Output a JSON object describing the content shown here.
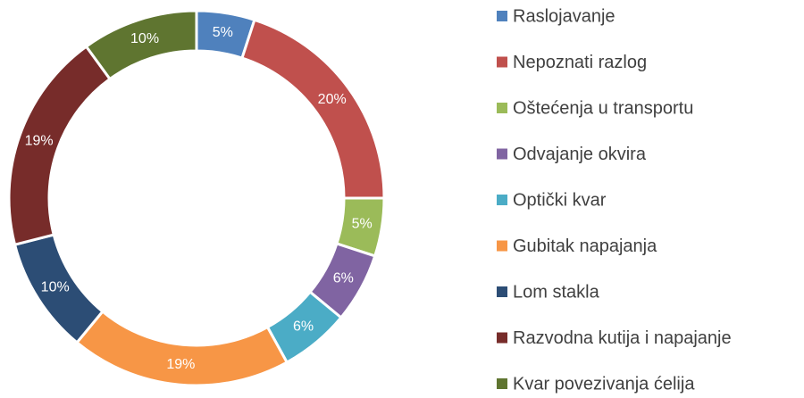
{
  "chart_data": {
    "type": "donut",
    "categories": [
      "Raslojavanje",
      "Nepoznati razlog",
      "Oštećenja u transportu",
      "Odvajanje okvira",
      "Optički kvar",
      "Gubitak napajanja",
      "Lom stakla",
      "Razvodna kutija i napajanje",
      "Kvar povezivanja ćelija"
    ],
    "values": [
      5,
      20,
      5,
      6,
      6,
      19,
      10,
      19,
      10
    ],
    "value_labels": [
      "5%",
      "20%",
      "5%",
      "6%",
      "6%",
      "19%",
      "10%",
      "19%",
      "10%"
    ],
    "colors": [
      "#4f81bd",
      "#c0504d",
      "#9bbb59",
      "#8064a2",
      "#4bacc6",
      "#f79646",
      "#2c4d75",
      "#772c2a",
      "#5f7530"
    ],
    "legend": "right"
  }
}
